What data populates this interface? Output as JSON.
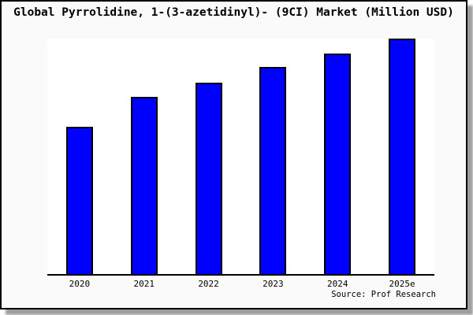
{
  "chart_data": {
    "type": "bar",
    "title": "Global Pyrrolidine, 1-(3-azetidinyl)- (9CI) Market (Million USD)",
    "categories": [
      "2020",
      "2021",
      "2022",
      "2023",
      "2024",
      "2025e"
    ],
    "values": [
      62.7,
      75.1,
      81.4,
      87.8,
      93.8,
      100
    ],
    "value_note": "Chart has no y-axis or gridlines; values estimated as bar height in % of plot height (tallest 2025e bar ≈ full plot height)",
    "xlabel": "",
    "ylabel": "",
    "ylim": [
      0,
      100
    ],
    "grid": false,
    "legend": "none",
    "source": "Source: Prof Research",
    "bar_color": "#0000ff",
    "bar_border_color": "#000000",
    "axis_line_color": "#000000",
    "plot_background": "#ffffff",
    "panel_background": "#fafafa",
    "panel_border_color": "#000000",
    "shadow_color": "#9e9e9e"
  }
}
